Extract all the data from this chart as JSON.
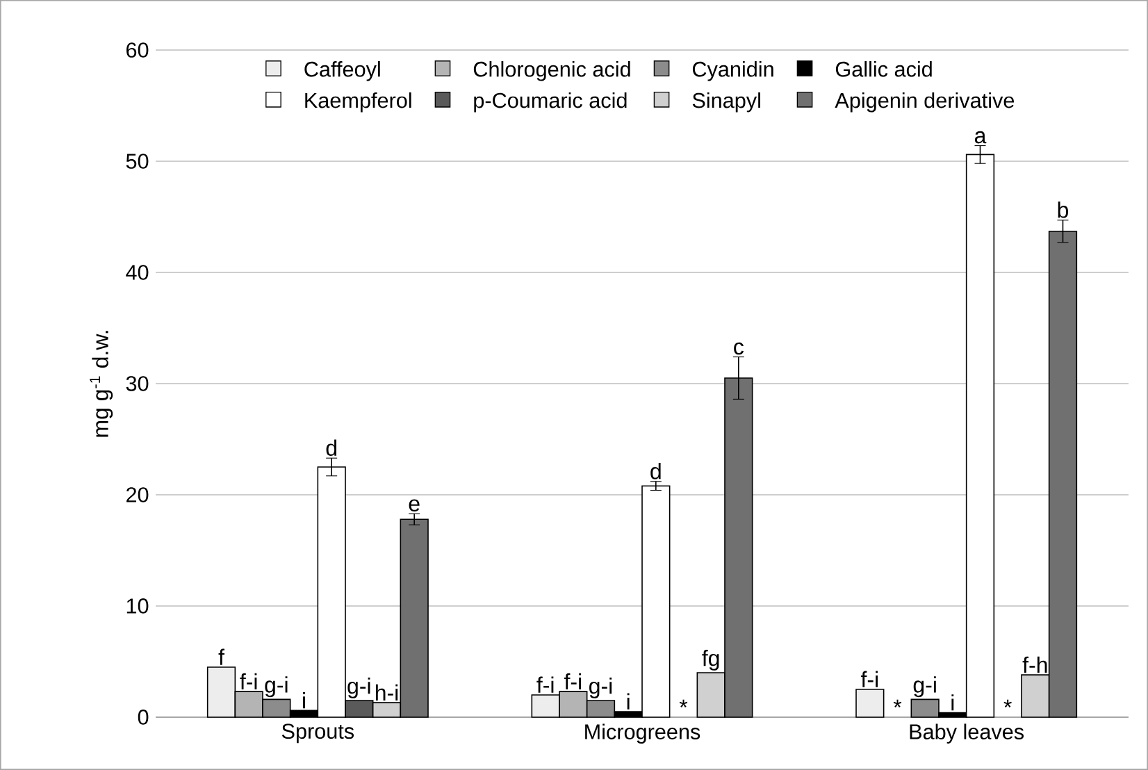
{
  "chart_data": {
    "type": "bar",
    "ylabel": "mg g$^{-1}$ d.w.",
    "categories": [
      "Sprouts",
      "Microgreens",
      "Baby leaves"
    ],
    "ylim": [
      0,
      60
    ],
    "yticks": [
      0,
      10,
      20,
      30,
      40,
      50,
      60
    ],
    "grid": "y",
    "legend": "top",
    "series": [
      {
        "name": "Caffeoyl",
        "color": "#ededed",
        "values": [
          4.5,
          2.0,
          2.5
        ],
        "value_labels": [
          "f",
          "f-i",
          "f-i"
        ]
      },
      {
        "name": "Chlorogenic acid",
        "color": "#b4b4b4",
        "values": [
          2.3,
          2.3,
          null
        ],
        "value_labels": [
          "f-i",
          "f-i",
          "*"
        ]
      },
      {
        "name": "Cyanidin",
        "color": "#8c8c8c",
        "values": [
          1.6,
          1.5,
          1.6
        ],
        "value_labels": [
          "g-i",
          "g-i",
          "g-i"
        ]
      },
      {
        "name": "Gallic acid",
        "color": "#000000",
        "values": [
          0.6,
          0.5,
          0.4
        ],
        "value_labels": [
          "i",
          "i",
          "i"
        ]
      },
      {
        "name": "Kaempferol",
        "color": "#ffffff",
        "values": [
          22.5,
          20.8,
          50.6
        ],
        "errors": [
          0.8,
          0.4,
          0.8
        ],
        "value_labels": [
          "d",
          "d",
          "a"
        ]
      },
      {
        "name": "p-Coumaric acid",
        "color": "#5a5a5a",
        "values": [
          1.5,
          null,
          null
        ],
        "value_labels": [
          "g-i",
          "*",
          "*"
        ]
      },
      {
        "name": "Sinapyl",
        "color": "#d0d0d0",
        "values": [
          1.3,
          4.0,
          3.8
        ],
        "value_labels": [
          "h-i",
          "fg",
          "f-h"
        ]
      },
      {
        "name": "Apigenin derivative",
        "color": "#707070",
        "values": [
          17.8,
          30.5,
          43.7
        ],
        "errors": [
          0.5,
          1.9,
          1.0
        ],
        "value_labels": [
          "e",
          "c",
          "b"
        ]
      }
    ]
  }
}
